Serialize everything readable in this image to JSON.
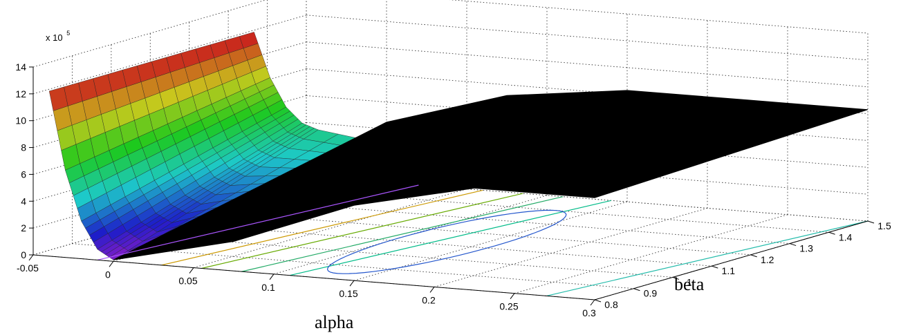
{
  "chart_data": {
    "type": "surface",
    "xlabel": "alpha",
    "ylabel": "beta",
    "zlabel": "",
    "z_multiplier": "x 10",
    "z_exponent": "5",
    "xlim": [
      -0.05,
      0.3
    ],
    "ylim": [
      0.8,
      1.5
    ],
    "zlim": [
      0,
      14
    ],
    "x_ticks": [
      "-0.05",
      "0",
      "0.05",
      "0.1",
      "0.15",
      "0.2",
      "0.25",
      "0.3"
    ],
    "y_ticks": [
      "0.8",
      "0.9",
      "1",
      "1.1",
      "1.2",
      "1.3",
      "1.4",
      "1.5"
    ],
    "z_ticks": [
      "0",
      "2",
      "4",
      "6",
      "8",
      "10",
      "12",
      "14"
    ],
    "grid": true,
    "colored_surface": {
      "alpha": [
        -0.04,
        -0.03,
        -0.02,
        -0.01,
        0.0,
        0.05,
        0.1,
        0.15
      ],
      "z_at_beta_min": [
        12.3,
        6.5,
        2.8,
        0.8,
        0.1,
        3.1,
        5.6,
        7.8
      ],
      "z_at_beta_max": [
        12.3,
        9.0,
        6.9,
        5.8,
        5.4,
        4.6,
        4.7,
        5.0
      ]
    },
    "black_surface": {
      "alpha_range": [
        0.0,
        0.3
      ],
      "beta_range": [
        0.8,
        1.5
      ],
      "z_near": [
        0.1,
        2.2,
        5.6,
        7.6,
        7.6
      ],
      "z_far": [
        4.5,
        7.2,
        8.3,
        8.3,
        8.3
      ]
    },
    "contours": [
      {
        "color": "#cc9900",
        "alpha": 0.03
      },
      {
        "color": "#66aa00",
        "alpha": 0.055
      },
      {
        "color": "#22aa66",
        "alpha": 0.08
      },
      {
        "color": "#00bb88",
        "alpha": 0.11
      },
      {
        "color": "#2255cc",
        "alpha": 0.13,
        "closed": true
      },
      {
        "color": "#22bbaa",
        "alpha": 0.27
      },
      {
        "color": "#aa55ff",
        "alpha": -0.01
      }
    ]
  }
}
